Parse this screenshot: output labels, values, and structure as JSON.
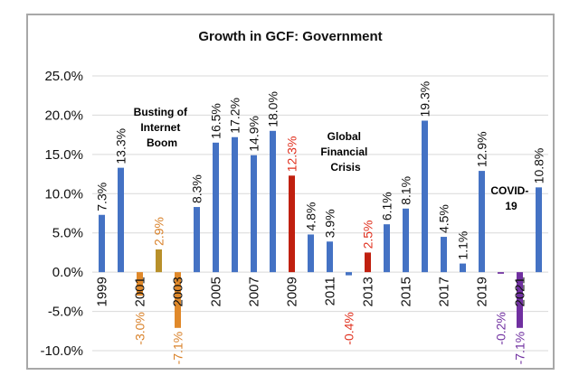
{
  "chart_data": {
    "type": "bar",
    "title": "Growth in GCF: Government",
    "xlabel": "",
    "ylabel": "",
    "ylim": [
      -10,
      25
    ],
    "y_ticks": [
      "25.0%",
      "20.0%",
      "15.0%",
      "10.0%",
      "5.0%",
      "0.0%",
      "-5.0%",
      "-10.0%"
    ],
    "y_tick_values": [
      25,
      20,
      15,
      10,
      5,
      0,
      -5,
      -10
    ],
    "grid": true,
    "categories": [
      "1999",
      "2000",
      "2001",
      "2002",
      "2003",
      "2004",
      "2005",
      "2006",
      "2007",
      "2008",
      "2009",
      "2010",
      "2011",
      "2012",
      "2013",
      "2014",
      "2015",
      "2016",
      "2017",
      "2018",
      "2019",
      "2020",
      "2021",
      "2022"
    ],
    "x_tick_labels": [
      "1999",
      "2001",
      "2003",
      "2005",
      "2007",
      "2009",
      "2011",
      "2013",
      "2015",
      "2017",
      "2019",
      "2021"
    ],
    "values": [
      7.3,
      13.3,
      -3.0,
      2.9,
      -7.1,
      8.3,
      16.5,
      17.2,
      14.9,
      18.0,
      12.3,
      4.8,
      3.9,
      -0.4,
      2.5,
      6.1,
      8.1,
      19.3,
      4.5,
      1.1,
      12.9,
      -0.2,
      -7.1,
      10.8
    ],
    "data_labels": [
      "7.3%",
      "13.3%",
      "-3.0%",
      "2.9%",
      "-7.1%",
      "8.3%",
      "16.5%",
      "17.2%",
      "14.9%",
      "18.0%",
      "12.3%",
      "4.8%",
      "3.9%",
      "-0.4%",
      "2.5%",
      "6.1%",
      "8.1%",
      "19.3%",
      "4.5%",
      "1.1%",
      "12.9%",
      "-0.2%",
      "-7.1%",
      "10.8%"
    ],
    "bar_colors": [
      "#4472c4",
      "#4472c4",
      "#e0892a",
      "#b8902a",
      "#e0892a",
      "#4472c4",
      "#4472c4",
      "#4472c4",
      "#4472c4",
      "#4472c4",
      "#c0200f",
      "#4472c4",
      "#4472c4",
      "#4472c4",
      "#c0200f",
      "#4472c4",
      "#4472c4",
      "#4472c4",
      "#4472c4",
      "#4472c4",
      "#4472c4",
      "#7030a0",
      "#7030a0",
      "#4472c4"
    ],
    "label_colors": [
      "#111",
      "#111",
      "#d9822b",
      "#d9822b",
      "#d9822b",
      "#111",
      "#111",
      "#111",
      "#111",
      "#111",
      "#e0301e",
      "#111",
      "#111",
      "#e0301e",
      "#e0301e",
      "#111",
      "#111",
      "#111",
      "#111",
      "#111",
      "#111",
      "#7030a0",
      "#7030a0",
      "#111"
    ],
    "annotations": [
      {
        "lines": [
          "Busting of",
          "Internet",
          "Boom"
        ],
        "color": "#c98a2a"
      },
      {
        "lines": [
          "Global",
          "Financial",
          "Crisis"
        ],
        "color": "#c0392b"
      },
      {
        "lines": [
          "COVID-",
          "19"
        ],
        "color": "#7030a0"
      }
    ]
  }
}
